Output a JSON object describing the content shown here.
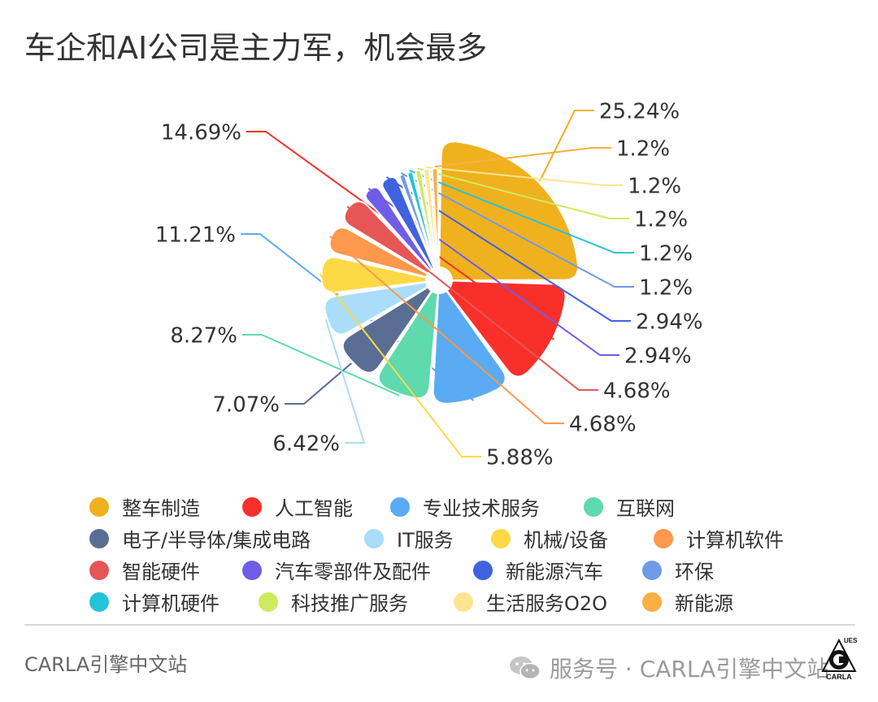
{
  "title": "车企和AI公司是主力军，机会最多",
  "chart_data": {
    "type": "pie",
    "style": "rose",
    "legend_position": "bottom",
    "slices": [
      {
        "label": "整车制造",
        "value": 25.24,
        "display": "25.24%",
        "color": "#F0B11F"
      },
      {
        "label": "人工智能",
        "value": 14.69,
        "display": "14.69%",
        "color": "#F9302A"
      },
      {
        "label": "专业技术服务",
        "value": 11.21,
        "display": "11.21%",
        "color": "#5AABF3"
      },
      {
        "label": "互联网",
        "value": 8.27,
        "display": "8.27%",
        "color": "#5FD9AE"
      },
      {
        "label": "电子/半导体/集成电路",
        "value": 7.07,
        "display": "7.07%",
        "color": "#5A6E93"
      },
      {
        "label": "IT服务",
        "value": 6.42,
        "display": "6.42%",
        "color": "#A9DDF9"
      },
      {
        "label": "机械/设备",
        "value": 5.88,
        "display": "5.88%",
        "color": "#FDD947"
      },
      {
        "label": "计算机软件",
        "value": 4.68,
        "display": "4.68%",
        "color": "#FE984C"
      },
      {
        "label": "智能硬件",
        "value": 4.68,
        "display": "4.68%",
        "color": "#E55757"
      },
      {
        "label": "汽车零部件及配件",
        "value": 2.94,
        "display": "2.94%",
        "color": "#6F5DE8"
      },
      {
        "label": "新能源汽车",
        "value": 2.94,
        "display": "2.94%",
        "color": "#3F62E0"
      },
      {
        "label": "环保",
        "value": 1.2,
        "display": "1.2%",
        "color": "#6F9AE9"
      },
      {
        "label": "计算机硬件",
        "value": 1.2,
        "display": "1.2%",
        "color": "#25C3D9"
      },
      {
        "label": "科技推广服务",
        "value": 1.2,
        "display": "1.2%",
        "color": "#CDEB5E"
      },
      {
        "label": "生活服务O2O",
        "value": 1.2,
        "display": "1.2%",
        "color": "#FFE58F"
      },
      {
        "label": "新能源",
        "value": 1.2,
        "display": "1.2%",
        "color": "#FDAE44"
      }
    ]
  },
  "footer": {
    "left": "CARLA引擎中文站",
    "right": "服务号 · CARLA引擎中文站",
    "logo_text": "CARLA",
    "logo_mark": "UES"
  },
  "icons": {
    "wechat": "wechat-icon",
    "logo": "carla-logo-icon"
  }
}
